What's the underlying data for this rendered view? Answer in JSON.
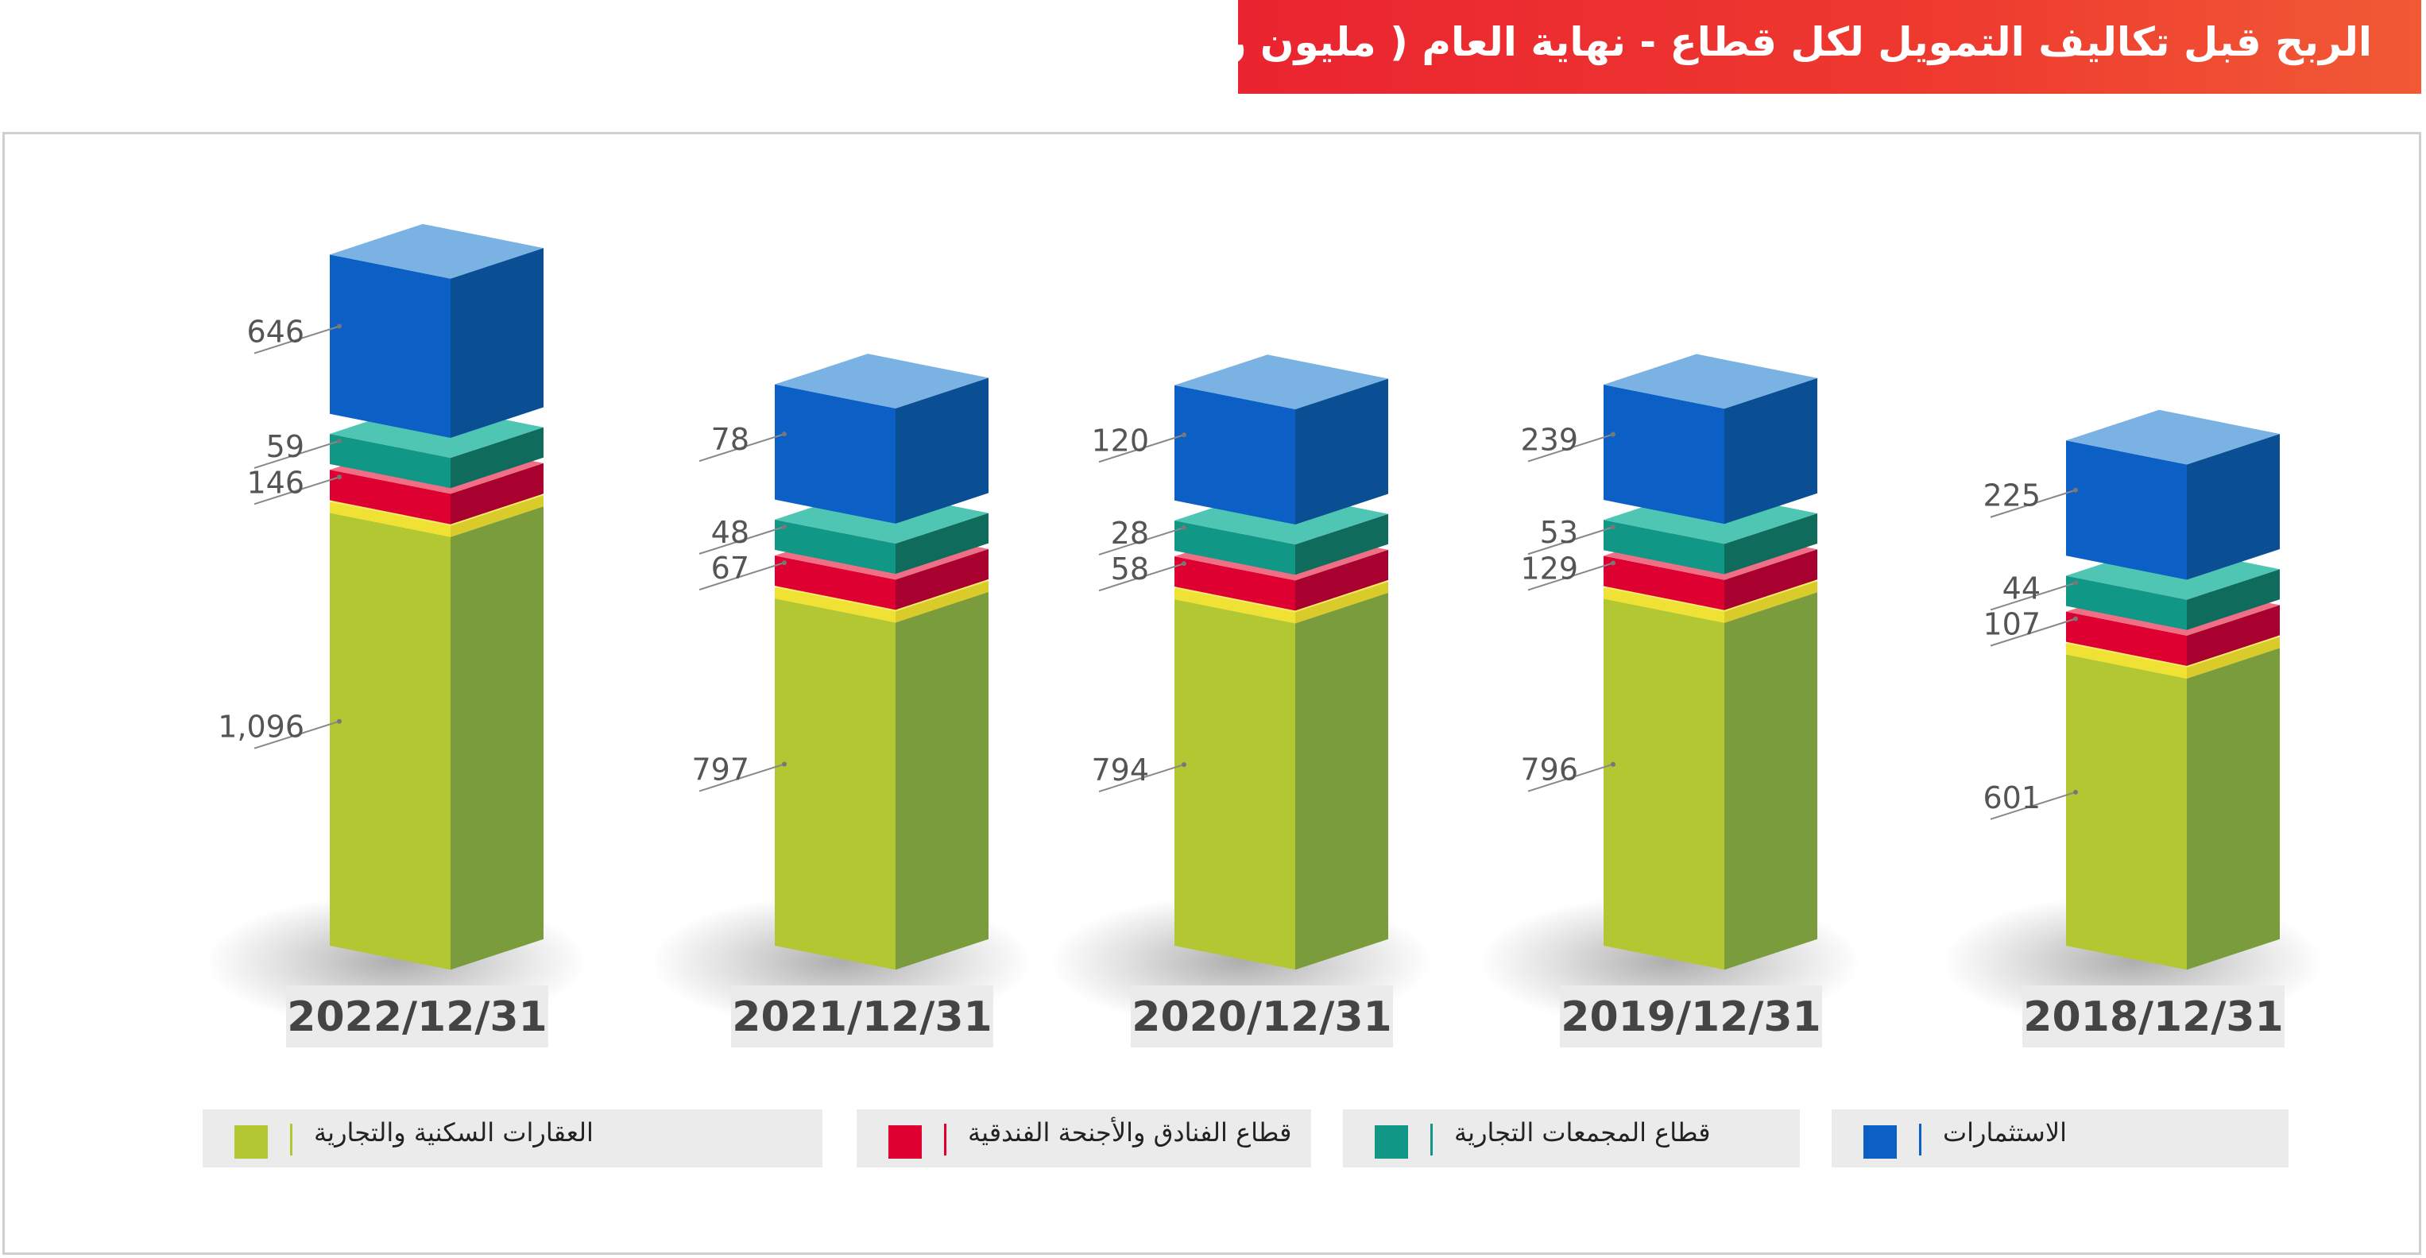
{
  "title": "الربح قبل تكاليف التمويل لكل قطاع - نهاية العام ( مليون رق )",
  "colors": {
    "investments": "#0c5fc5",
    "malls": "#109786",
    "hotels": "#df0032",
    "realestate": "#b3c733",
    "separator": "#f0e234"
  },
  "legend": [
    {
      "key": "investments",
      "label": "الاستثمارات"
    },
    {
      "key": "malls",
      "label": "قطاع المجمعات التجارية"
    },
    {
      "key": "hotels",
      "label": "قطاع الفنادق والأجنحة الفندقية"
    },
    {
      "key": "realestate",
      "label": "العقارات السكنية والتجارية"
    }
  ],
  "chart_data": {
    "type": "bar",
    "stacked": true,
    "categories": [
      "2022/12/31",
      "2021/12/31",
      "2020/12/31",
      "2019/12/31",
      "2018/12/31"
    ],
    "series": [
      {
        "name": "العقارات السكنية والتجارية",
        "key": "realestate",
        "values": [
          1096,
          797,
          794,
          796,
          601
        ],
        "labels": [
          "1,096",
          "797",
          "794",
          "796",
          "601"
        ]
      },
      {
        "name": "قطاع الفنادق والأجنحة الفندقية",
        "key": "hotels",
        "values": [
          146,
          67,
          58,
          129,
          107
        ],
        "labels": [
          "146",
          "67",
          "58",
          "129",
          "107"
        ]
      },
      {
        "name": "قطاع المجمعات التجارية",
        "key": "malls",
        "values": [
          59,
          48,
          28,
          53,
          44
        ],
        "labels": [
          "59",
          "48",
          "28",
          "53",
          "44"
        ]
      },
      {
        "name": "الاستثمارات",
        "key": "investments",
        "values": [
          646,
          78,
          120,
          239,
          225
        ],
        "labels": [
          "646",
          "78",
          "120",
          "239",
          "225"
        ]
      }
    ]
  }
}
